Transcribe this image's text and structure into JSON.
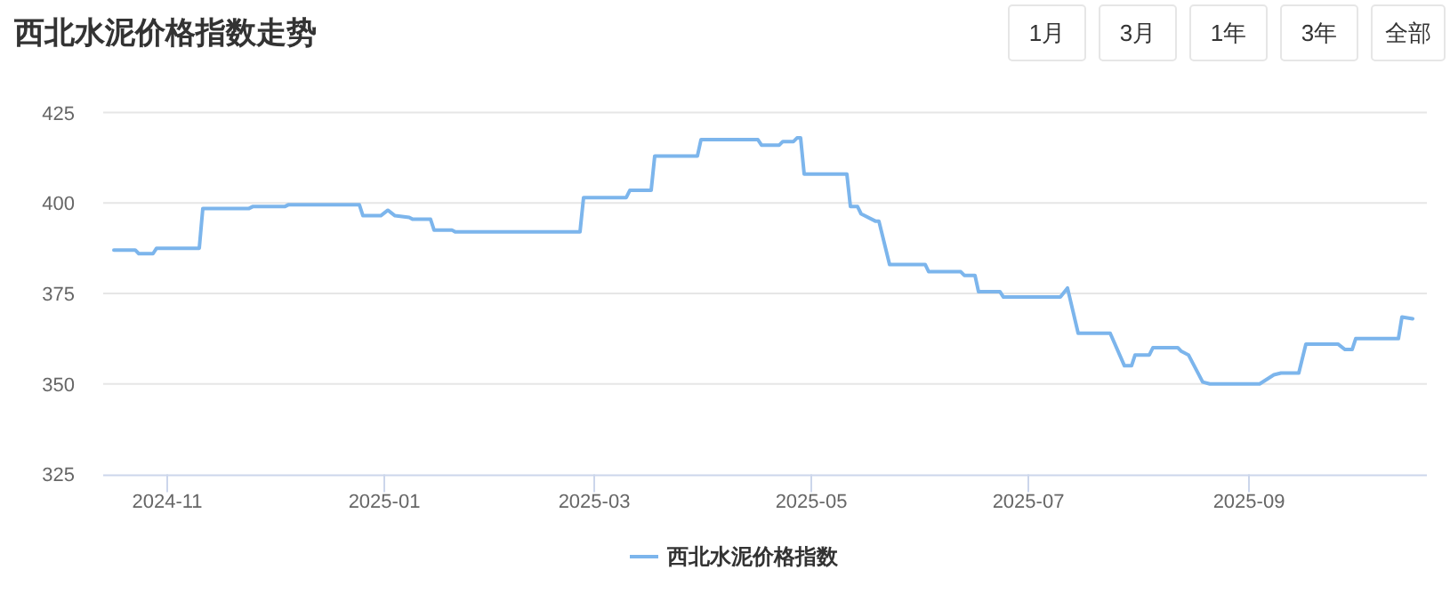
{
  "chart_data": {
    "type": "line",
    "title": "西北水泥价格指数走势",
    "annotations": [
      "1月",
      "3月",
      "1年",
      "3年",
      "全部"
    ],
    "xlim": [
      "2024-10-14",
      "2025-10-21"
    ],
    "xticks": [
      "2024-11",
      "2025-01",
      "2025-03",
      "2025-05",
      "2025-07",
      "2025-09"
    ],
    "ylim": [
      325,
      425
    ],
    "yticks": [
      325,
      350,
      375,
      400,
      425
    ],
    "grid": "y",
    "legend": "bottom",
    "marker": "none",
    "line_style": "solid",
    "series": [
      {
        "name": "西北水泥价格指数",
        "color": "#7cb5ec",
        "x": [
          "2024-10-17",
          "2024-10-23",
          "2024-10-24",
          "2024-10-28",
          "2024-10-29",
          "2024-11-10",
          "2024-11-11",
          "2024-11-24",
          "2024-11-25",
          "2024-12-04",
          "2024-12-05",
          "2024-12-25",
          "2024-12-26",
          "2024-12-31",
          "2025-01-02",
          "2025-01-04",
          "2025-01-08",
          "2025-01-09",
          "2025-01-14",
          "2025-01-15",
          "2025-01-20",
          "2025-01-21",
          "2025-02-25",
          "2025-02-26",
          "2025-03-10",
          "2025-03-11",
          "2025-03-17",
          "2025-03-18",
          "2025-03-30",
          "2025-03-31",
          "2025-04-16",
          "2025-04-17",
          "2025-04-22",
          "2025-04-23",
          "2025-04-26",
          "2025-04-27",
          "2025-04-28",
          "2025-04-29",
          "2025-05-11",
          "2025-05-12",
          "2025-05-14",
          "2025-05-15",
          "2025-05-19",
          "2025-05-20",
          "2025-05-23",
          "2025-05-26",
          "2025-05-27",
          "2025-06-02",
          "2025-06-03",
          "2025-06-12",
          "2025-06-13",
          "2025-06-16",
          "2025-06-17",
          "2025-06-23",
          "2025-06-24",
          "2025-07-10",
          "2025-07-12",
          "2025-07-15",
          "2025-07-24",
          "2025-07-28",
          "2025-07-30",
          "2025-07-31",
          "2025-08-04",
          "2025-08-05",
          "2025-08-12",
          "2025-08-13",
          "2025-08-15",
          "2025-08-19",
          "2025-08-21",
          "2025-09-04",
          "2025-09-08",
          "2025-09-10",
          "2025-09-15",
          "2025-09-17",
          "2025-09-26",
          "2025-09-28",
          "2025-09-30",
          "2025-10-01",
          "2025-10-13",
          "2025-10-14",
          "2025-10-17"
        ],
        "values": [
          387,
          387,
          386,
          386,
          387.5,
          387.5,
          398.5,
          398.5,
          399,
          399,
          399.5,
          399.5,
          396.5,
          396.5,
          398,
          396.5,
          396,
          395.5,
          395.5,
          392.5,
          392.5,
          392,
          392,
          401.5,
          401.5,
          403.5,
          403.5,
          413,
          413,
          417.5,
          417.5,
          416,
          416,
          417,
          417,
          418,
          418,
          408,
          408,
          399,
          399,
          397,
          395,
          395,
          383,
          383,
          383,
          383,
          381,
          381,
          380,
          380,
          375.5,
          375.5,
          374,
          374,
          376.5,
          364,
          364,
          355,
          355,
          358,
          358,
          360,
          360,
          359,
          358,
          350.5,
          350,
          350,
          352.5,
          353,
          353,
          361,
          361,
          359.5,
          359.5,
          362.5,
          362.5,
          368.5,
          368
        ]
      }
    ]
  }
}
